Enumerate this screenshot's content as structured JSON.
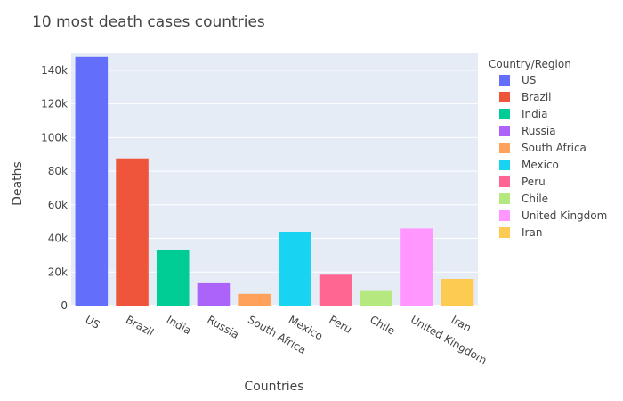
{
  "chart_data": {
    "type": "bar",
    "title": "10 most death cases countries",
    "xlabel": "Countries",
    "ylabel": "Deaths",
    "ylim": [
      0,
      150000
    ],
    "yticks": [
      0,
      20000,
      40000,
      60000,
      80000,
      100000,
      120000,
      140000
    ],
    "ytick_labels": [
      "0",
      "20k",
      "40k",
      "60k",
      "80k",
      "100k",
      "120k",
      "140k"
    ],
    "grid": true,
    "legend_title": "Country/Region",
    "legend_position": "right",
    "categories": [
      "US",
      "Brazil",
      "India",
      "Russia",
      "South Africa",
      "Mexico",
      "Peru",
      "Chile",
      "United Kingdom",
      "Iran"
    ],
    "values": [
      148000,
      87600,
      33400,
      13300,
      7000,
      44000,
      18400,
      9200,
      45900,
      15900
    ],
    "colors": [
      "#636efa",
      "#EF553B",
      "#00cc96",
      "#ab63fa",
      "#FFA15A",
      "#19d3f3",
      "#FF6692",
      "#B6E880",
      "#FF97FF",
      "#FECB52"
    ]
  }
}
